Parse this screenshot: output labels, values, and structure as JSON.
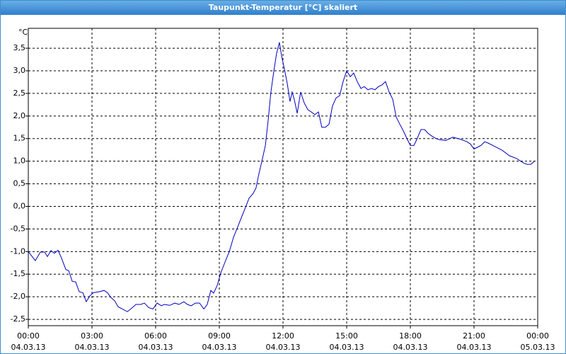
{
  "chart_data": {
    "type": "line",
    "title": "Taupunkt-Temperatur [°C] skaliert",
    "ylabel": "°C",
    "x": [
      0,
      0.33,
      0.57,
      0.77,
      0.9,
      1.07,
      1.23,
      1.4,
      1.57,
      1.77,
      1.9,
      2.07,
      2.23,
      2.4,
      2.57,
      2.73,
      2.9,
      3.07,
      3.33,
      3.57,
      3.73,
      3.9,
      4.07,
      4.23,
      4.43,
      4.67,
      4.9,
      5.07,
      5.3,
      5.47,
      5.67,
      5.87,
      6.07,
      6.27,
      6.4,
      6.67,
      6.9,
      7.1,
      7.33,
      7.5,
      7.67,
      7.87,
      8.07,
      8.27,
      8.43,
      8.6,
      8.73,
      8.9,
      9.07,
      9.27,
      9.47,
      9.67,
      9.87,
      10.07,
      10.27,
      10.4,
      10.6,
      10.73,
      10.87,
      11.0,
      11.17,
      11.3,
      11.43,
      11.57,
      11.7,
      11.83,
      11.93,
      12.07,
      12.2,
      12.33,
      12.43,
      12.53,
      12.67,
      12.83,
      13.0,
      13.17,
      13.33,
      13.5,
      13.67,
      13.83,
      14.0,
      14.17,
      14.33,
      14.5,
      14.67,
      14.83,
      15.0,
      15.17,
      15.33,
      15.5,
      15.67,
      15.83,
      16.0,
      16.17,
      16.33,
      16.5,
      16.67,
      16.83,
      17.0,
      17.17,
      17.33,
      17.5,
      17.67,
      17.83,
      18.0,
      18.17,
      18.33,
      18.5,
      18.67,
      18.83,
      19.0,
      19.17,
      19.33,
      19.67,
      20.0,
      20.33,
      20.67,
      20.83,
      21.0,
      21.17,
      21.33,
      21.5,
      21.67,
      22.0,
      22.33,
      22.67,
      23.0,
      23.33,
      23.5,
      23.67,
      23.83
    ],
    "values": [
      -1.0,
      -1.2,
      -1.01,
      -1.01,
      -1.11,
      -0.98,
      -1.04,
      -0.97,
      -1.15,
      -1.4,
      -1.42,
      -1.66,
      -1.67,
      -1.89,
      -1.91,
      -2.11,
      -1.98,
      -1.91,
      -1.89,
      -1.86,
      -1.91,
      -2.02,
      -2.09,
      -2.22,
      -2.27,
      -2.33,
      -2.24,
      -2.17,
      -2.17,
      -2.14,
      -2.24,
      -2.27,
      -2.14,
      -2.2,
      -2.17,
      -2.19,
      -2.14,
      -2.17,
      -2.11,
      -2.17,
      -2.2,
      -2.14,
      -2.14,
      -2.27,
      -2.17,
      -1.86,
      -1.92,
      -1.75,
      -1.47,
      -1.23,
      -1.0,
      -0.68,
      -0.45,
      -0.21,
      0.02,
      0.18,
      0.29,
      0.41,
      0.73,
      0.99,
      1.35,
      1.9,
      2.53,
      3.0,
      3.39,
      3.63,
      3.34,
      3.03,
      2.72,
      2.32,
      2.53,
      2.37,
      2.06,
      2.53,
      2.29,
      2.14,
      2.09,
      2.03,
      2.09,
      1.75,
      1.75,
      1.82,
      2.22,
      2.4,
      2.45,
      2.76,
      3.0,
      2.87,
      2.95,
      2.76,
      2.61,
      2.65,
      2.58,
      2.61,
      2.58,
      2.65,
      2.69,
      2.76,
      2.53,
      2.37,
      1.98,
      1.82,
      1.67,
      1.51,
      1.35,
      1.35,
      1.51,
      1.7,
      1.7,
      1.62,
      1.56,
      1.51,
      1.48,
      1.46,
      1.53,
      1.49,
      1.43,
      1.38,
      1.27,
      1.31,
      1.35,
      1.43,
      1.4,
      1.32,
      1.24,
      1.12,
      1.06,
      0.96,
      0.93,
      0.93,
      0.99
    ],
    "color": "#0000c0",
    "xlim": [
      0,
      24
    ],
    "xticks": [
      {
        "value": 0,
        "label": "00:00",
        "date": "04.03.13"
      },
      {
        "value": 3,
        "label": "03:00",
        "date": "04.03.13"
      },
      {
        "value": 6,
        "label": "06:00",
        "date": "04.03.13"
      },
      {
        "value": 9,
        "label": "09:00",
        "date": "04.03.13"
      },
      {
        "value": 12,
        "label": "12:00",
        "date": "04.03.13"
      },
      {
        "value": 15,
        "label": "15:00",
        "date": "04.03.13"
      },
      {
        "value": 18,
        "label": "18:00",
        "date": "04.03.13"
      },
      {
        "value": 21,
        "label": "21:00",
        "date": "04.03.13"
      },
      {
        "value": 24,
        "label": "00:00",
        "date": "05.03.13"
      }
    ],
    "ylim": [
      -2.64,
      3.94
    ],
    "yticks": [
      {
        "value": -2.5,
        "label": "-2,5"
      },
      {
        "value": -2,
        "label": "-2,0"
      },
      {
        "value": -1.5,
        "label": "-1,5"
      },
      {
        "value": -1,
        "label": "-1,0"
      },
      {
        "value": -0.5,
        "label": "-0,5"
      },
      {
        "value": 0,
        "label": "0,0"
      },
      {
        "value": 0.5,
        "label": "0,5"
      },
      {
        "value": 1,
        "label": "1,0"
      },
      {
        "value": 1.5,
        "label": "1,5"
      },
      {
        "value": 2,
        "label": "2,0"
      },
      {
        "value": 2.5,
        "label": "2,5"
      },
      {
        "value": 3,
        "label": "3,0"
      },
      {
        "value": 3.5,
        "label": "3,5"
      }
    ],
    "grid": true
  }
}
